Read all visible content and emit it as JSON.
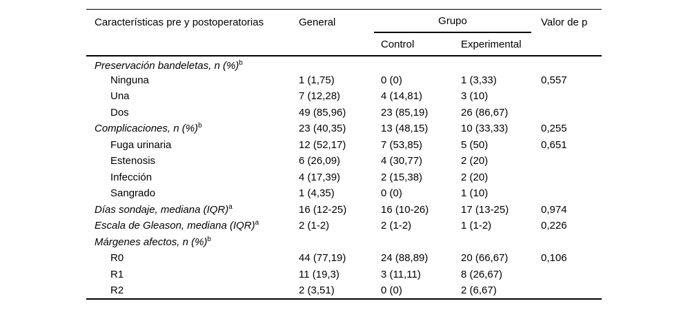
{
  "colors": {
    "text": "#000000",
    "background": "#ffffff",
    "rule": "#000000"
  },
  "table": {
    "headers": {
      "characteristics": "Características pre y postoperatorias",
      "general": "General",
      "group": "Grupo",
      "control": "Control",
      "experimental": "Experimental",
      "p_value": "Valor de p"
    },
    "rows": [
      {
        "label": "Preservación bandeletas, n (%)",
        "sup": "b",
        "general": "",
        "control": "",
        "experimental": "",
        "p": ""
      },
      {
        "label": "Ninguna",
        "sup": "",
        "general": "1 (1,75)",
        "control": "0 (0)",
        "experimental": "1 (3,33)",
        "p": "0,557"
      },
      {
        "label": "Una",
        "sup": "",
        "general": "7 (12,28)",
        "control": "4 (14,81)",
        "experimental": "3 (10)",
        "p": ""
      },
      {
        "label": "Dos",
        "sup": "",
        "general": "49 (85,96)",
        "control": "23 (85,19)",
        "experimental": "26 (86,67)",
        "p": ""
      },
      {
        "label": "Complicaciones, n (%)",
        "sup": "b",
        "general": "23 (40,35)",
        "control": "13 (48,15)",
        "experimental": "10 (33,33)",
        "p": "0,255"
      },
      {
        "label": "Fuga urinaria",
        "sup": "",
        "general": "12 (52,17)",
        "control": "7 (53,85)",
        "experimental": "5 (50)",
        "p": "0,651"
      },
      {
        "label": "Estenosis",
        "sup": "",
        "general": "6 (26,09)",
        "control": "4 (30,77)",
        "experimental": "2 (20)",
        "p": ""
      },
      {
        "label": "Infección",
        "sup": "",
        "general": "4 (17,39)",
        "control": "2 (15,38)",
        "experimental": "2 (20)",
        "p": ""
      },
      {
        "label": "Sangrado",
        "sup": "",
        "general": "1 (4,35)",
        "control": "0 (0)",
        "experimental": "1 (10)",
        "p": ""
      },
      {
        "label": "Días sondaje, mediana (IQR)",
        "sup": "a",
        "general": "16 (12-25)",
        "control": "16 (10-26)",
        "experimental": "17 (13-25)",
        "p": "0,974"
      },
      {
        "label": "Escala de Gleason, mediana (IQR)",
        "sup": "a",
        "general": "2 (1-2)",
        "control": "2 (1-2)",
        "experimental": "1 (1-2)",
        "p": "0,226"
      },
      {
        "label": "Márgenes afectos, n (%)",
        "sup": "b",
        "general": "",
        "control": "",
        "experimental": "",
        "p": ""
      },
      {
        "label": "R0",
        "sup": "",
        "general": "44 (77,19)",
        "control": "24 (88,89)",
        "experimental": "20 (66,67)",
        "p": "0,106"
      },
      {
        "label": "R1",
        "sup": "",
        "general": "11 (19,3)",
        "control": "3 (11,11)",
        "experimental": "8 (26,67)",
        "p": ""
      },
      {
        "label": "R2",
        "sup": "",
        "general": "2 (3,51)",
        "control": "0 (0)",
        "experimental": "2 (6,67)",
        "p": ""
      }
    ]
  }
}
